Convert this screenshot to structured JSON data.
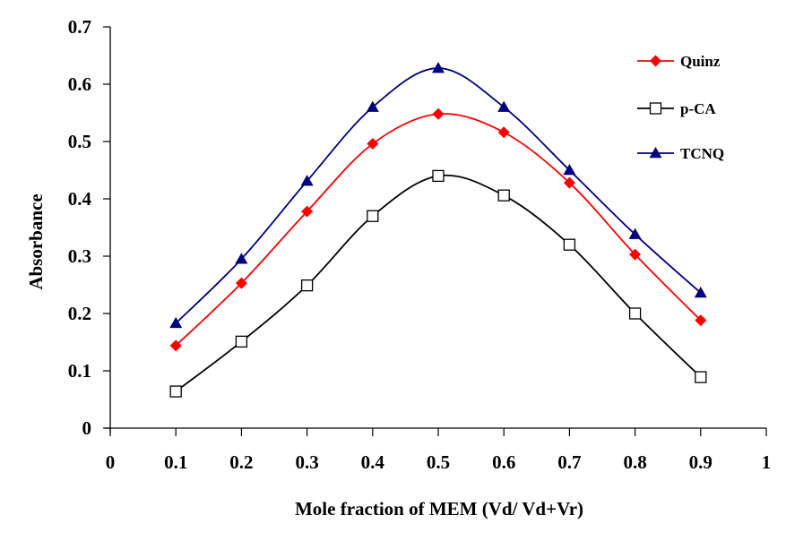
{
  "chart_data": {
    "type": "line",
    "title": "",
    "xlabel": "Mole fraction of MEM (Vd/ Vd+Vr)",
    "ylabel": "Absorbance",
    "xlim": [
      0,
      1
    ],
    "ylim": [
      0,
      0.7
    ],
    "xticks": [
      "0",
      "0.1",
      "0.2",
      "0.3",
      "0.4",
      "0.5",
      "0.6",
      "0.7",
      "0.8",
      "0.9",
      "1"
    ],
    "yticks": [
      "0",
      "0.1",
      "0.2",
      "0.3",
      "0.4",
      "0.5",
      "0.6",
      "0.7"
    ],
    "grid": false,
    "legend_position": "top-right",
    "smooth": true,
    "x": [
      0.1,
      0.2,
      0.3,
      0.4,
      0.5,
      0.6,
      0.7,
      0.8,
      0.9
    ],
    "series": [
      {
        "name": "Quinz",
        "color": "#ff0000",
        "marker": "diamond",
        "values": [
          0.144,
          0.253,
          0.378,
          0.496,
          0.548,
          0.516,
          0.428,
          0.303,
          0.188
        ]
      },
      {
        "name": "p-CA",
        "color": "#000000",
        "marker": "square-open",
        "values": [
          0.064,
          0.151,
          0.249,
          0.37,
          0.44,
          0.406,
          0.32,
          0.2,
          0.089
        ]
      },
      {
        "name": "TCNQ",
        "color": "#000080",
        "marker": "triangle",
        "values": [
          0.183,
          0.295,
          0.431,
          0.56,
          0.628,
          0.56,
          0.45,
          0.338,
          0.236
        ]
      }
    ]
  }
}
